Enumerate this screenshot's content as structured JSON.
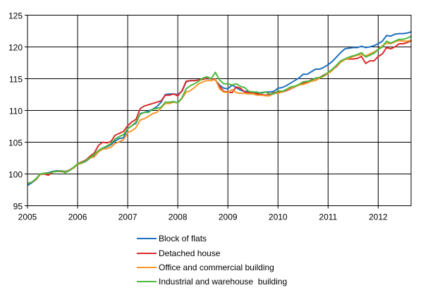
{
  "chart_data": {
    "type": "line",
    "title": "",
    "xlabel": "",
    "ylabel": "",
    "x_start": "2005-01",
    "x_frequency": "monthly",
    "xlim": [
      "2005-01",
      "2012-09"
    ],
    "ylim": [
      95,
      125
    ],
    "y_ticks": [
      "95",
      "100",
      "105",
      "110",
      "115",
      "120",
      "125"
    ],
    "x_ticks": [
      "2005",
      "2006",
      "2007",
      "2008",
      "2009",
      "2010",
      "2011",
      "2012"
    ],
    "grid": true,
    "legend_position": "bottom",
    "series": [
      {
        "name": "Block of flats",
        "color": "#1f6fbf",
        "values": [
          98.2,
          98.6,
          99.1,
          100.0,
          100.1,
          100.2,
          100.4,
          100.5,
          100.5,
          100.4,
          100.6,
          101.0,
          101.5,
          101.7,
          102.0,
          102.5,
          102.9,
          103.5,
          104.0,
          104.3,
          104.6,
          105.2,
          105.6,
          105.7,
          107.2,
          107.6,
          108.0,
          109.5,
          109.7,
          109.9,
          110.2,
          110.6,
          111.3,
          112.5,
          112.6,
          112.6,
          112.5,
          113.0,
          114.5,
          114.7,
          114.7,
          114.8,
          115.0,
          115.0,
          115.0,
          114.8,
          114.0,
          113.5,
          113.4,
          114.0,
          113.6,
          113.2,
          113.0,
          113.0,
          112.9,
          112.7,
          112.8,
          112.9,
          112.9,
          113.0,
          113.5,
          113.6,
          113.9,
          114.3,
          114.7,
          115.1,
          115.7,
          115.7,
          116.1,
          116.5,
          116.5,
          116.8,
          117.2,
          117.7,
          118.4,
          119.1,
          119.7,
          119.8,
          119.9,
          119.9,
          120.1,
          119.9,
          120.0,
          120.2,
          120.5,
          120.9,
          121.8,
          121.7,
          122.0,
          122.1,
          122.1,
          122.2,
          122.4
        ]
      },
      {
        "name": "Detached house",
        "color": "#d92b2b",
        "values": [
          98.5,
          98.7,
          99.1,
          99.9,
          100.0,
          99.8,
          100.3,
          100.4,
          100.4,
          100.3,
          100.6,
          101.0,
          101.6,
          101.9,
          102.2,
          102.8,
          103.3,
          104.5,
          105.0,
          104.9,
          105.1,
          106.1,
          106.4,
          106.7,
          107.6,
          108.2,
          108.6,
          110.3,
          110.7,
          110.9,
          111.1,
          111.3,
          111.5,
          112.4,
          112.4,
          112.6,
          112.3,
          113.1,
          114.6,
          114.7,
          114.7,
          114.8,
          114.9,
          115.1,
          115.0,
          114.8,
          113.8,
          113.0,
          112.9,
          112.8,
          113.7,
          113.5,
          112.9,
          112.8,
          112.8,
          112.6,
          112.5,
          112.4,
          112.5,
          112.8,
          112.8,
          112.9,
          113.1,
          113.4,
          113.7,
          114.0,
          114.3,
          114.5,
          114.8,
          115.0,
          115.2,
          115.6,
          115.9,
          116.4,
          116.9,
          117.6,
          118.1,
          118.1,
          118.1,
          118.2,
          118.5,
          117.4,
          117.8,
          117.8,
          118.5,
          118.9,
          119.9,
          119.7,
          120.0,
          120.5,
          120.5,
          120.7,
          121.0
        ]
      },
      {
        "name": "Office and commercial building",
        "color": "#f7962b",
        "values": [
          98.5,
          98.7,
          99.2,
          99.9,
          100.1,
          100.1,
          100.3,
          100.4,
          100.5,
          100.3,
          100.6,
          100.9,
          101.5,
          101.7,
          102.1,
          102.5,
          102.7,
          103.5,
          103.9,
          104.0,
          104.2,
          104.8,
          105.1,
          105.4,
          106.5,
          106.8,
          107.3,
          108.5,
          108.7,
          109.1,
          109.5,
          109.7,
          110.4,
          111.1,
          111.1,
          111.3,
          111.2,
          111.9,
          112.9,
          113.1,
          113.6,
          114.2,
          114.5,
          114.7,
          114.7,
          114.9,
          113.4,
          112.9,
          112.8,
          113.3,
          112.8,
          112.7,
          112.7,
          112.6,
          112.6,
          112.4,
          112.4,
          112.3,
          112.3,
          112.7,
          112.7,
          112.9,
          113.2,
          113.5,
          113.7,
          114.0,
          114.1,
          114.3,
          114.6,
          114.7,
          115.1,
          115.4,
          115.8,
          116.3,
          117.0,
          117.6,
          118.0,
          118.2,
          118.5,
          118.7,
          118.8,
          118.6,
          118.9,
          119.2,
          119.6,
          120.2,
          120.6,
          120.5,
          120.8,
          121.0,
          120.9,
          120.9,
          121.1
        ]
      },
      {
        "name": "Industrial and warehouse  building",
        "color": "#4cb83c",
        "values": [
          98.5,
          98.7,
          99.2,
          100.0,
          100.1,
          100.1,
          100.3,
          100.4,
          100.5,
          100.2,
          100.5,
          101.0,
          101.6,
          101.8,
          102.1,
          102.6,
          103.1,
          103.7,
          104.1,
          104.4,
          104.8,
          105.5,
          105.9,
          106.2,
          107.1,
          107.6,
          108.2,
          109.4,
          109.7,
          109.7,
          110.2,
          110.3,
          110.5,
          111.3,
          111.3,
          111.4,
          111.2,
          112.0,
          113.4,
          113.9,
          114.2,
          114.6,
          115.1,
          115.3,
          115.0,
          116.0,
          114.8,
          114.2,
          114.2,
          114.0,
          114.2,
          113.8,
          113.6,
          113.0,
          112.9,
          112.9,
          112.7,
          112.9,
          112.6,
          112.6,
          113.1,
          113.0,
          113.3,
          113.7,
          113.8,
          114.1,
          114.5,
          114.6,
          114.7,
          115.1,
          115.2,
          115.5,
          116.0,
          116.5,
          117.1,
          117.8,
          118.1,
          118.4,
          118.6,
          118.8,
          119.1,
          118.4,
          118.7,
          119.0,
          119.6,
          120.0,
          120.9,
          120.6,
          120.9,
          121.2,
          121.2,
          121.4,
          121.7
        ]
      }
    ]
  }
}
